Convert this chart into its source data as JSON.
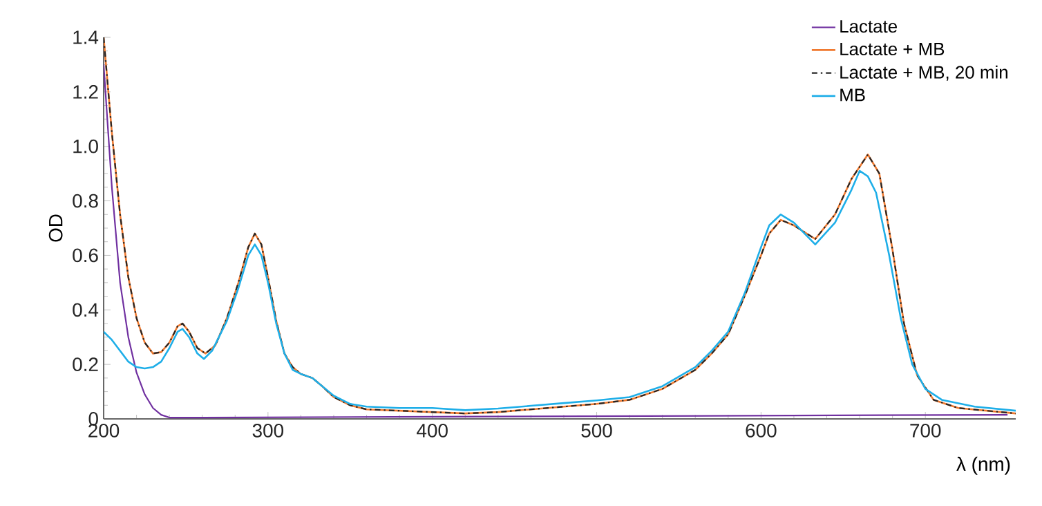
{
  "chart_data": {
    "type": "line",
    "xlabel": "λ (nm)",
    "ylabel": "OD",
    "xlim": [
      200,
      755
    ],
    "xticks": [
      200,
      300,
      400,
      500,
      600,
      700
    ],
    "ylim": [
      0,
      1.4
    ],
    "yticks": [
      0,
      0.2,
      0.4,
      0.6,
      0.8,
      {
        "value": 1,
        "label": "1.0"
      },
      1.2,
      1.4
    ],
    "legend": "top right",
    "grid": false,
    "marker": "none",
    "series": [
      {
        "name": "Lactate",
        "color": "#7030a0",
        "x": [
          200,
          205,
          210,
          215,
          220,
          225,
          230,
          235,
          240,
          260,
          400,
          750
        ],
        "values": [
          1.3,
          0.85,
          0.5,
          0.3,
          0.17,
          0.09,
          0.04,
          0.015,
          0.005,
          0.005,
          0.008,
          0.015
        ]
      },
      {
        "name": "Lactate + MB",
        "color": "#f07a30",
        "x": [
          200,
          205,
          210,
          215,
          220,
          225,
          230,
          235,
          240,
          245,
          248,
          252,
          257,
          262,
          268,
          275,
          282,
          288,
          292,
          296,
          300,
          305,
          310,
          315,
          320,
          327,
          333,
          340,
          350,
          360,
          380,
          400,
          420,
          440,
          460,
          480,
          500,
          520,
          540,
          560,
          570,
          580,
          590,
          600,
          605,
          612,
          620,
          633,
          645,
          655,
          665,
          672,
          680,
          687,
          695,
          705,
          720,
          755
        ],
        "values": [
          1.4,
          1.05,
          0.75,
          0.52,
          0.37,
          0.28,
          0.24,
          0.245,
          0.28,
          0.34,
          0.35,
          0.32,
          0.26,
          0.24,
          0.27,
          0.37,
          0.5,
          0.63,
          0.68,
          0.64,
          0.52,
          0.36,
          0.24,
          0.19,
          0.165,
          0.15,
          0.12,
          0.08,
          0.05,
          0.035,
          0.03,
          0.025,
          0.02,
          0.025,
          0.035,
          0.045,
          0.055,
          0.07,
          0.11,
          0.18,
          0.24,
          0.31,
          0.45,
          0.6,
          0.68,
          0.73,
          0.71,
          0.66,
          0.75,
          0.88,
          0.97,
          0.9,
          0.62,
          0.35,
          0.16,
          0.07,
          0.04,
          0.02
        ]
      },
      {
        "name": "Lactate + MB, 20 min",
        "color": "#262626",
        "line_style": "dashed",
        "x": [
          200,
          205,
          210,
          215,
          220,
          225,
          230,
          235,
          240,
          245,
          248,
          252,
          257,
          262,
          268,
          275,
          282,
          288,
          292,
          296,
          300,
          305,
          310,
          315,
          320,
          327,
          333,
          340,
          350,
          360,
          380,
          400,
          420,
          440,
          460,
          480,
          500,
          520,
          540,
          560,
          570,
          580,
          590,
          600,
          605,
          612,
          620,
          633,
          645,
          655,
          665,
          672,
          680,
          687,
          695,
          705,
          720,
          755
        ],
        "values": [
          1.4,
          1.05,
          0.75,
          0.52,
          0.37,
          0.28,
          0.24,
          0.245,
          0.28,
          0.34,
          0.35,
          0.32,
          0.26,
          0.24,
          0.27,
          0.37,
          0.5,
          0.63,
          0.68,
          0.64,
          0.52,
          0.36,
          0.24,
          0.19,
          0.165,
          0.15,
          0.12,
          0.08,
          0.05,
          0.035,
          0.03,
          0.025,
          0.02,
          0.025,
          0.035,
          0.045,
          0.055,
          0.07,
          0.11,
          0.18,
          0.24,
          0.31,
          0.45,
          0.6,
          0.68,
          0.73,
          0.71,
          0.66,
          0.75,
          0.88,
          0.97,
          0.9,
          0.62,
          0.35,
          0.16,
          0.07,
          0.04,
          0.02
        ]
      },
      {
        "name": "MB",
        "color": "#1eaee8",
        "x": [
          200,
          205,
          210,
          215,
          220,
          225,
          230,
          235,
          240,
          245,
          248,
          252,
          257,
          261,
          266,
          275,
          282,
          288,
          292,
          296,
          300,
          305,
          310,
          315,
          320,
          327,
          333,
          340,
          350,
          360,
          380,
          400,
          420,
          440,
          460,
          480,
          500,
          520,
          540,
          560,
          570,
          580,
          590,
          600,
          605,
          612,
          620,
          633,
          645,
          655,
          660,
          665,
          670,
          678,
          685,
          692,
          700,
          710,
          730,
          755
        ],
        "values": [
          0.32,
          0.29,
          0.25,
          0.21,
          0.19,
          0.185,
          0.19,
          0.21,
          0.26,
          0.32,
          0.33,
          0.3,
          0.24,
          0.22,
          0.25,
          0.36,
          0.48,
          0.6,
          0.64,
          0.6,
          0.5,
          0.35,
          0.24,
          0.18,
          0.165,
          0.15,
          0.12,
          0.085,
          0.055,
          0.045,
          0.04,
          0.04,
          0.032,
          0.038,
          0.048,
          0.058,
          0.068,
          0.08,
          0.12,
          0.19,
          0.25,
          0.32,
          0.46,
          0.63,
          0.71,
          0.75,
          0.72,
          0.64,
          0.72,
          0.84,
          0.91,
          0.89,
          0.83,
          0.6,
          0.37,
          0.2,
          0.11,
          0.07,
          0.045,
          0.03
        ]
      }
    ]
  }
}
